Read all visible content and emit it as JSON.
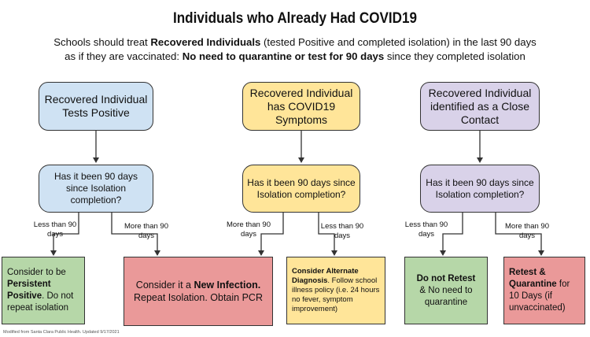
{
  "title": "Individuals who Already Had COVID19",
  "subtitle": {
    "l1_a": "Schools should treat ",
    "l1_b": "Recovered Individuals",
    "l1_c": " (tested Positive and completed isolation) in the last 90 days",
    "l2_a": "as if they are vaccinated: ",
    "l2_b": "No need to quarantine or test for 90 days",
    "l2_c": " since they completed isolation"
  },
  "columns": [
    {
      "scenario": "Recovered Individual Tests Positive",
      "question": "Has it been 90 days since Isolation completion?",
      "less_label": "Less than 90 days",
      "more_label": "More than 90 days"
    },
    {
      "scenario": "Recovered Individual has COVID19 Symptoms",
      "question": "Has it been 90 days since Isolation completion?",
      "less_label": "More than 90 days",
      "more_label": "Less than 90 days"
    },
    {
      "scenario": "Recovered Individual identified as a Close Contact",
      "question": "Has it been 90 days since Isolation completion?",
      "less_label": "Less than 90 days",
      "more_label": "More than 90 days"
    }
  ],
  "outcomes": {
    "persistent": {
      "a": "Consider to be ",
      "b": "Persistent Positive",
      "c": ". Do not repeat isolation"
    },
    "new_infection": {
      "a": "Consider it a ",
      "b": "New Infection.",
      "c": " Repeat Isolation. Obtain PCR"
    },
    "alternate": {
      "b": "Consider Alternate Diagnosis",
      "c": ". Follow school illness policy (i.e. 24 hours no fever, symptom improvement)"
    },
    "no_retest": {
      "b": "Do not Retest",
      "c": " & No need to quarantine"
    },
    "retest": {
      "b": "Retest & Quarantine",
      "c": " for 10 Days (if unvaccinated)"
    }
  },
  "footer": "Modified from Santa Clara Public Health. Updated 9/17/2021",
  "colors": {
    "blue": "#cfe2f3",
    "yellow": "#ffe599",
    "purple": "#d9d2e9",
    "green": "#b6d7a8",
    "red": "#ea9999",
    "line": "#333333"
  }
}
